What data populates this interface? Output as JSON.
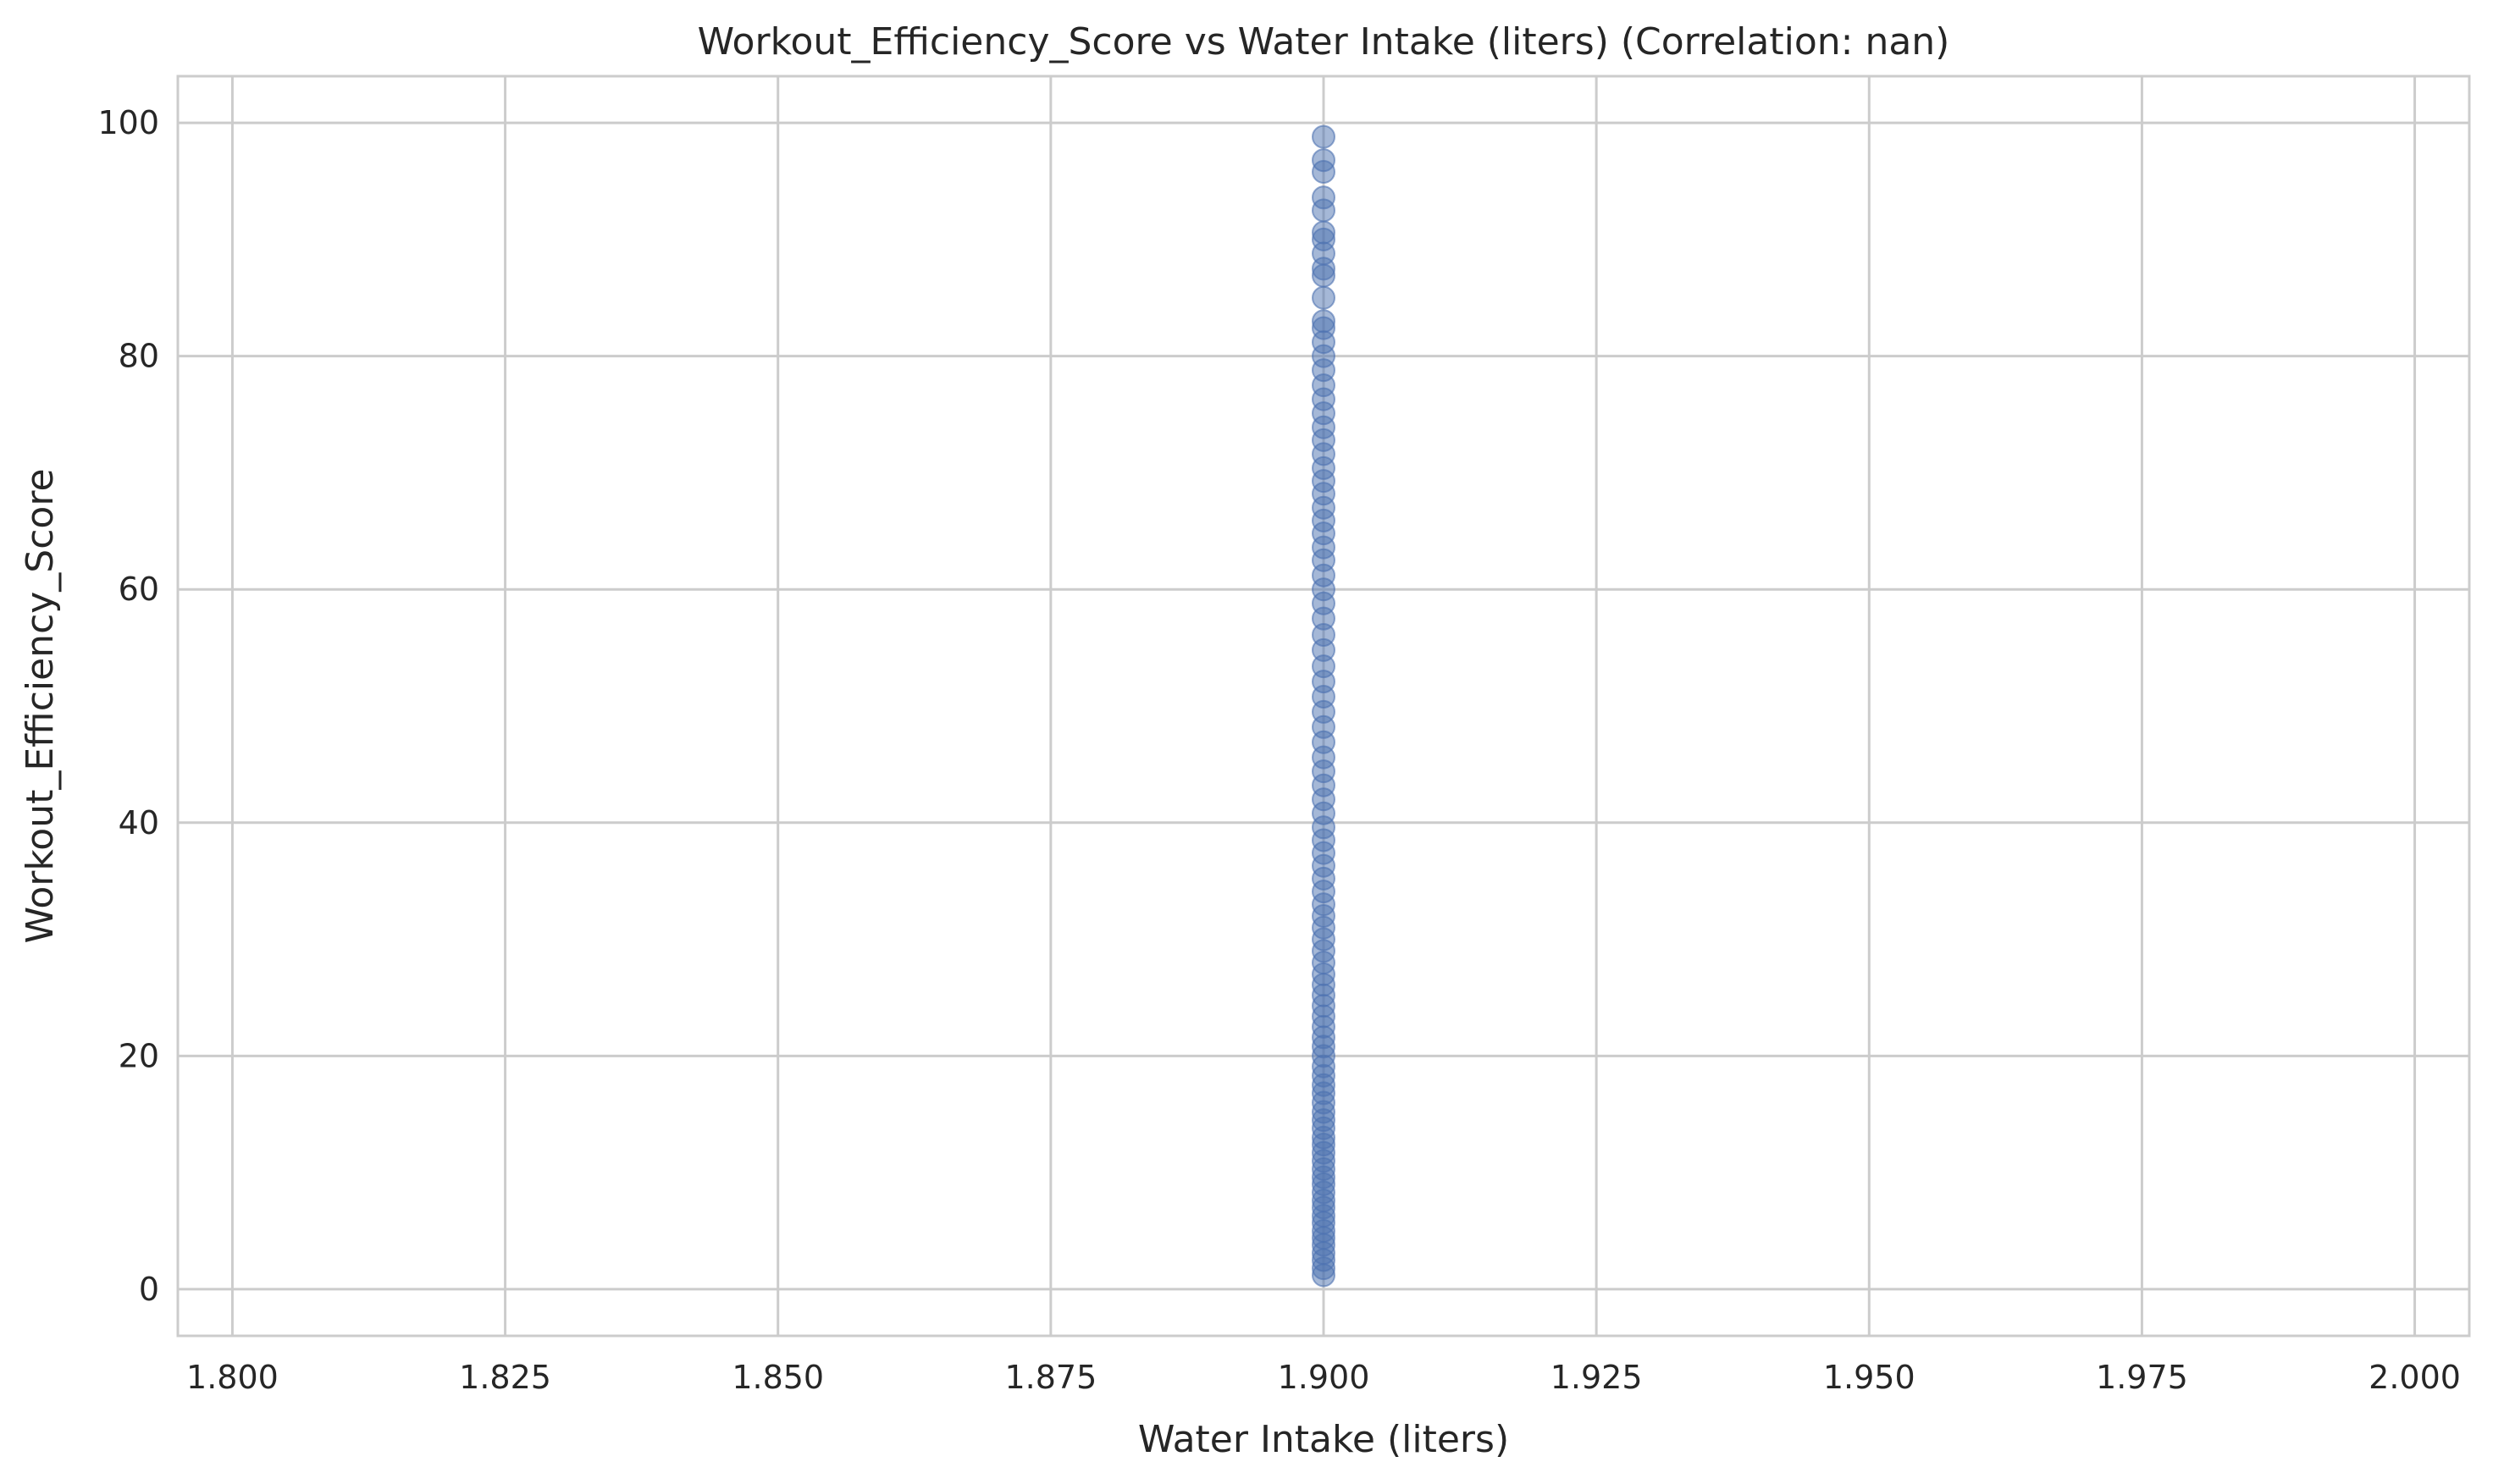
{
  "chart_data": {
    "type": "scatter",
    "title": "Workout_Efficiency_Score vs Water Intake (liters) (Correlation: nan)",
    "xlabel": "Water Intake (liters)",
    "ylabel": "Workout_Efficiency_Score",
    "xlim": [
      1.795,
      2.005
    ],
    "ylim": [
      -4,
      104
    ],
    "xticks": [
      1.8,
      1.825,
      1.85,
      1.875,
      1.9,
      1.925,
      1.95,
      1.975,
      2.0
    ],
    "xtick_labels": [
      "1.800",
      "1.825",
      "1.850",
      "1.875",
      "1.900",
      "1.925",
      "1.950",
      "1.975",
      "2.000"
    ],
    "yticks": [
      0,
      20,
      40,
      60,
      80,
      100
    ],
    "ytick_labels": [
      "0",
      "20",
      "40",
      "60",
      "80",
      "100"
    ],
    "grid": true,
    "legend": "none",
    "marker_color": "#4c72b0",
    "series": [
      {
        "x_constant": 1.9,
        "y": [
          1.2,
          1.8,
          2.5,
          3.1,
          3.8,
          4.4,
          5.0,
          5.7,
          6.3,
          7.0,
          7.6,
          8.3,
          9.0,
          9.6,
          10.3,
          11.0,
          11.7,
          12.4,
          13.0,
          13.8,
          14.5,
          15.2,
          16.0,
          16.8,
          17.5,
          18.3,
          19.1,
          20.0,
          20.8,
          21.6,
          22.5,
          23.4,
          24.3,
          25.2,
          26.1,
          27.0,
          28.0,
          29.0,
          30.0,
          31.0,
          32.0,
          33.0,
          34.1,
          35.2,
          36.3,
          37.4,
          38.5,
          39.6,
          40.8,
          42.0,
          43.2,
          44.4,
          45.6,
          46.9,
          48.2,
          49.5,
          50.8,
          52.1,
          53.4,
          54.8,
          56.1,
          57.5,
          58.8,
          60.0,
          61.2,
          62.5,
          63.6,
          64.8,
          65.9,
          67.0,
          68.2,
          69.3,
          70.4,
          71.6,
          72.8,
          73.9,
          75.1,
          76.3,
          77.5,
          78.8,
          80.0,
          81.2,
          82.4,
          83.0,
          85.0,
          86.9,
          87.5,
          88.8,
          90.0,
          90.6,
          92.5,
          93.6,
          95.8,
          96.8,
          98.8
        ]
      }
    ]
  }
}
